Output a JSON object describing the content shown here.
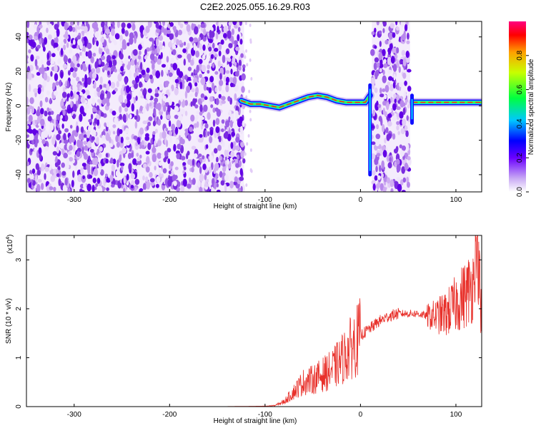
{
  "chart_data": [
    {
      "type": "heatmap",
      "title": "C2E2.2025.055.16.29.R03",
      "xlabel": "Height of straight line (km)",
      "ylabel": "Frequency (Hz)",
      "xlim": [
        -350,
        127
      ],
      "ylim": [
        -50,
        49
      ],
      "x_ticks": [
        -300,
        -200,
        -100,
        0,
        100
      ],
      "y_ticks": [
        -40,
        -20,
        0,
        20,
        40
      ],
      "colorbar": {
        "label": "Normalized spectral amplitude",
        "range": [
          0,
          1
        ],
        "ticks": [
          "0.0",
          "0.2",
          "0.4",
          "0.6",
          "0.8"
        ]
      },
      "broadband_noise_regions_km": [
        [
          -350,
          -122
        ],
        [
          12,
          52
        ]
      ],
      "ridge_trace": {
        "x": [
          -125,
          -115,
          -105,
          -95,
          -85,
          -75,
          -65,
          -55,
          -45,
          -35,
          -25,
          -15,
          -5,
          5,
          10,
          55,
          60,
          70,
          80,
          90,
          100,
          110,
          120,
          127
        ],
        "y": [
          3,
          1,
          1,
          0,
          -1,
          1,
          3,
          5,
          6,
          5,
          3,
          2,
          2,
          2,
          6,
          2,
          2,
          2,
          2,
          2,
          2,
          2,
          2,
          2
        ]
      },
      "grid": false
    },
    {
      "type": "line",
      "xlabel": "Height of straight line (km)",
      "ylabel": "SNR (10 * v/v)",
      "y_multiplier": "(x10^4)",
      "y_multiplier_base": "(x10",
      "y_multiplier_exp": "4",
      "y_multiplier_close": ")",
      "xlim": [
        -350,
        127
      ],
      "ylim": [
        0,
        3.5
      ],
      "x_ticks": [
        -300,
        -200,
        -100,
        0,
        100
      ],
      "y_ticks": [
        0,
        1,
        2,
        3
      ],
      "series": [
        {
          "color": "#e8302a",
          "x": [
            -350,
            -250,
            -150,
            -100,
            -90,
            -80,
            -70,
            -60,
            -50,
            -40,
            -30,
            -20,
            -10,
            0,
            10,
            20,
            30,
            40,
            50,
            60,
            70,
            80,
            90,
            100,
            110,
            118,
            122,
            127
          ],
          "y": [
            0.0,
            0.0,
            0.0,
            0.01,
            0.02,
            0.1,
            0.3,
            0.5,
            0.55,
            0.65,
            0.75,
            0.95,
            1.2,
            1.45,
            1.6,
            1.75,
            1.85,
            1.9,
            1.9,
            1.9,
            1.85,
            1.85,
            1.9,
            2.1,
            2.3,
            2.5,
            3.5,
            1.5
          ]
        }
      ],
      "grid": false
    }
  ]
}
